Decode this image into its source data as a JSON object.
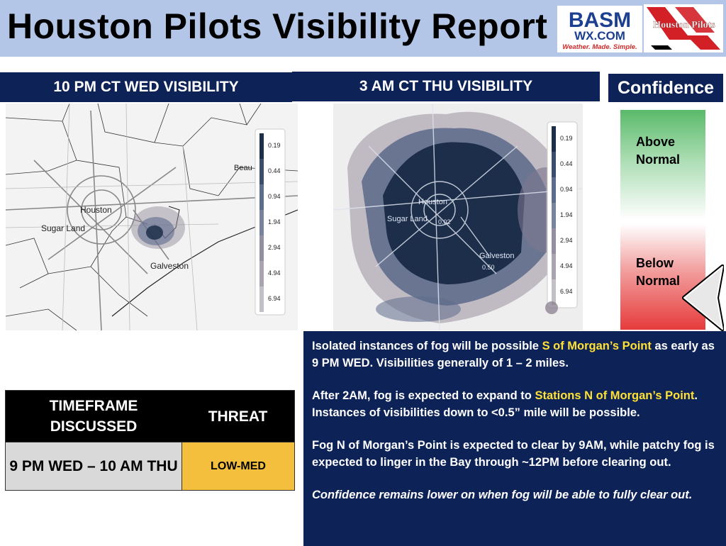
{
  "title": "Houston Pilots Visibility Report",
  "logos": {
    "basm_line1": "BASM",
    "basm_line2": "WX.COM",
    "basm_tagline": "Weather. Made. Simple.",
    "pilots_name": "Houston Pilots"
  },
  "panels": {
    "left_header": "10 PM CT WED VISIBILITY",
    "right_header": "3 AM CT THU VISIBILITY"
  },
  "map_left": {
    "labels": {
      "houston": "Houston",
      "sugar_land": "Sugar Land",
      "galveston": "Galveston",
      "beaumont": "Beau"
    },
    "legend": [
      "0.19",
      "0.44",
      "0.94",
      "1.94",
      "2.94",
      "4.94",
      "6.94"
    ]
  },
  "map_right": {
    "labels": {
      "houston": "Houston",
      "sugar_land": "Sugar Land",
      "galveston": "Galveston",
      "val1": "0.02",
      "val2": "0.50"
    },
    "legend": [
      "0.19",
      "0.44",
      "0.94",
      "1.94",
      "2.94",
      "4.94",
      "6.94"
    ]
  },
  "confidence": {
    "header": "Confidence",
    "above": "Above\nNormal",
    "below": "Below\nNormal",
    "level": "below-normal"
  },
  "threat_table": {
    "col1_header": "TIMEFRAME DISCUSSED",
    "col2_header": "THREAT",
    "timeframe": "9 PM WED – 10 AM THU",
    "threat": "LOW-MED"
  },
  "text": {
    "p1_a": "Isolated instances of fog will be possible ",
    "p1_hl": "S of Morgan’s Point",
    "p1_b": " as early as 9 PM WED. Visibilities generally of 1 – 2 miles.",
    "p2_a": "After 2AM, fog is expected to expand to ",
    "p2_hl": "Stations N of Morgan’s Point",
    "p2_b": ". Instances of visibilities down to <0.5” mile will be possible.",
    "p3": "Fog N of Morgan’s Point is expected to clear by 9AM, while patchy fog is expected to linger in the Bay through ~12PM before clearing out.",
    "p4": "Confidence remains lower on when fog will be able to fully clear out."
  },
  "colors": {
    "header_bg": "#b4c6e7",
    "panel_navy": "#0d2257",
    "highlight": "#ffe135",
    "threat_fill": "#f4bf3c",
    "fog_dense": "#1d2e4a"
  }
}
